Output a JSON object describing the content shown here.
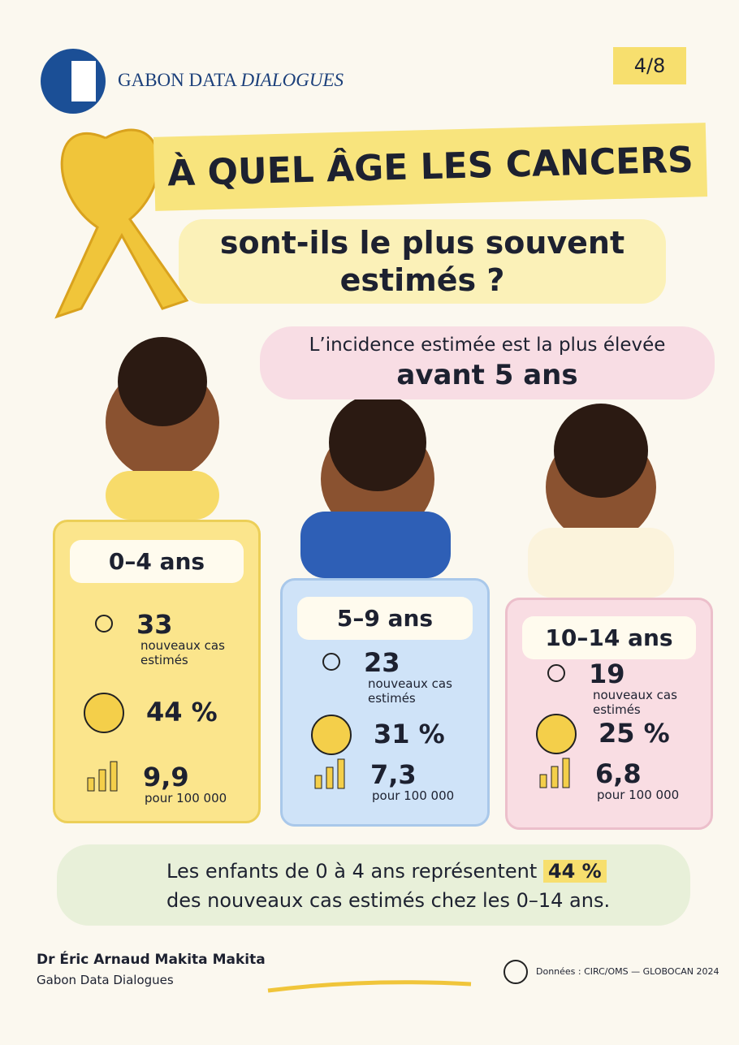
{
  "header": {
    "brand_main": "GABON DATA",
    "brand_italic": "DIALOGUES",
    "page": "4/8"
  },
  "title": {
    "line1": "À QUEL ÂGE LES CANCERS",
    "line2": "sont-ils le plus souvent",
    "line3": "estimés ?"
  },
  "subtitle": {
    "line1": "L’incidence estimée est la plus élevée",
    "line2": "avant 5 ans"
  },
  "groups": [
    {
      "label": "0–4 ans",
      "cases": "33",
      "cases_label": "nouveaux cas estimés",
      "share": "44 %",
      "rate": "9,9",
      "rate_label": "pour 100 000"
    },
    {
      "label": "5–9 ans",
      "cases": "23",
      "cases_label": "nouveaux cas estimés",
      "share": "31 %",
      "rate": "7,3",
      "rate_label": "pour 100 000"
    },
    {
      "label": "10–14 ans",
      "cases": "19",
      "cases_label": "nouveaux cas estimés",
      "share": "25 %",
      "rate": "6,8",
      "rate_label": "pour 100 000"
    }
  ],
  "callout": {
    "text1": "Les enfants de 0 à 4 ans représentent",
    "highlight": "44 %",
    "text2": "des nouveaux cas estimés chez les 0–14 ans."
  },
  "footer": {
    "author": "Dr Éric Arnaud Makita Makita",
    "organization": "Gabon Data Dialogues",
    "source": "Données : CIRC/OMS — GLOBOCAN 2024"
  }
}
